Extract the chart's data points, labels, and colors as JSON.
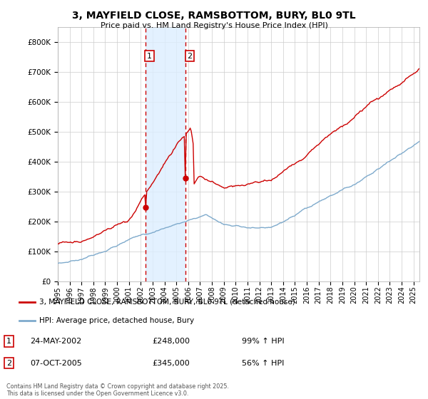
{
  "title": "3, MAYFIELD CLOSE, RAMSBOTTOM, BURY, BL0 9TL",
  "subtitle": "Price paid vs. HM Land Registry's House Price Index (HPI)",
  "footer": "Contains HM Land Registry data © Crown copyright and database right 2025.\nThis data is licensed under the Open Government Licence v3.0.",
  "legend_line1": "3, MAYFIELD CLOSE, RAMSBOTTOM, BURY, BL0 9TL (detached house)",
  "legend_line2": "HPI: Average price, detached house, Bury",
  "sale1_label": "1",
  "sale1_date": "24-MAY-2002",
  "sale1_price": "£248,000",
  "sale1_hpi": "99% ↑ HPI",
  "sale2_label": "2",
  "sale2_date": "07-OCT-2005",
  "sale2_price": "£345,000",
  "sale2_hpi": "56% ↑ HPI",
  "red_color": "#cc0000",
  "blue_color": "#7eaacc",
  "shade_color": "#ddeeff",
  "vline_color": "#cc0000",
  "background_color": "#ffffff",
  "grid_color": "#cccccc",
  "ylim_max": 850000,
  "x_start_year": 1995,
  "x_end_year": 2025,
  "sale1_year": 2002.38,
  "sale2_year": 2005.77,
  "red_dot1_price": 248000,
  "red_dot2_price": 345000
}
